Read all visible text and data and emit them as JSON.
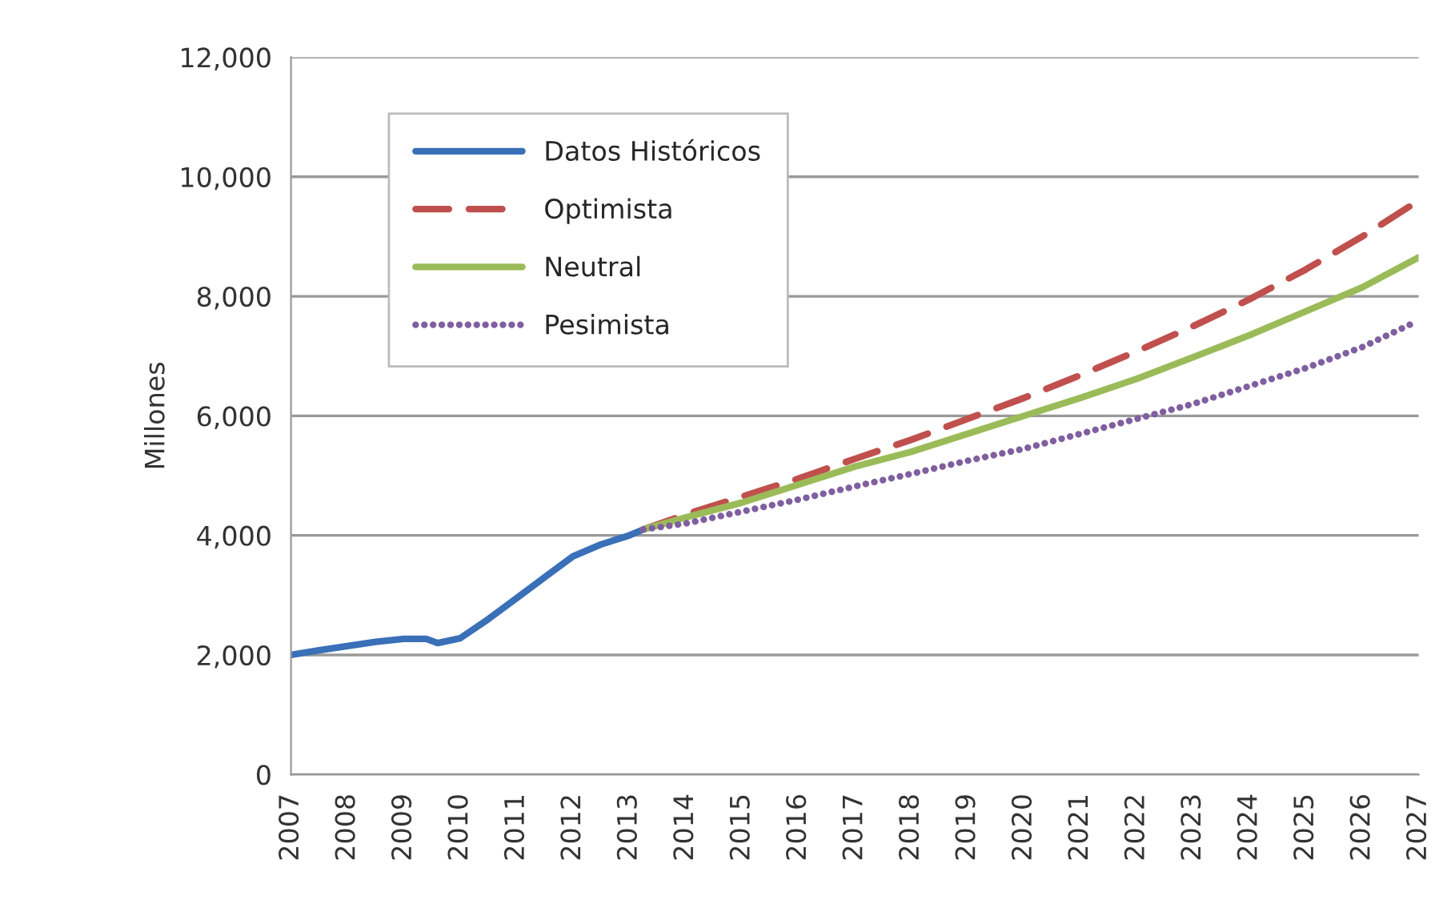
{
  "chart_data": {
    "type": "line",
    "ylabel": "Millones",
    "xlim": [
      2007,
      2027
    ],
    "xticks": [
      2007,
      2008,
      2009,
      2010,
      2011,
      2012,
      2013,
      2014,
      2015,
      2016,
      2017,
      2018,
      2019,
      2020,
      2021,
      2022,
      2023,
      2024,
      2025,
      2026,
      2027
    ],
    "ylim": [
      0,
      12000
    ],
    "yticks": [
      {
        "value": 0,
        "label": "0"
      },
      {
        "value": 2000,
        "label": "2,000"
      },
      {
        "value": 4000,
        "label": "4,000"
      },
      {
        "value": 6000,
        "label": "6,000"
      },
      {
        "value": 8000,
        "label": "8,000"
      },
      {
        "value": 10000,
        "label": "10,000"
      },
      {
        "value": 12000,
        "label": "12,000"
      }
    ],
    "grid": "y",
    "legend": "top left",
    "series": [
      {
        "name": "Datos Históricos",
        "color": "#3a70b8",
        "line_style": "solid",
        "x": [
          2007,
          2007.5,
          2008,
          2008.5,
          2009,
          2009.4,
          2009.6,
          2010,
          2010.5,
          2011,
          2011.5,
          2012,
          2012.5,
          2013,
          2013.25
        ],
        "values": [
          2000,
          2080,
          2150,
          2220,
          2270,
          2270,
          2200,
          2280,
          2600,
          2950,
          3300,
          3650,
          3850,
          4000,
          4100
        ]
      },
      {
        "name": "Optimista",
        "color": "#c0504d",
        "line_style": "dashed",
        "x": [
          2013.25,
          2014,
          2015,
          2016,
          2017,
          2018,
          2019,
          2020,
          2021,
          2022,
          2023,
          2024,
          2025,
          2026,
          2027
        ],
        "values": [
          4100,
          4350,
          4650,
          4950,
          5280,
          5600,
          5950,
          6300,
          6680,
          7080,
          7500,
          7950,
          8450,
          9000,
          9600
        ]
      },
      {
        "name": "Neutral",
        "color": "#9bbb59",
        "line_style": "solid",
        "x": [
          2013.25,
          2014,
          2015,
          2016,
          2017,
          2018,
          2019,
          2020,
          2021,
          2022,
          2023,
          2024,
          2025,
          2026,
          2027
        ],
        "values": [
          4100,
          4300,
          4550,
          4850,
          5150,
          5400,
          5700,
          6000,
          6300,
          6620,
          6980,
          7350,
          7750,
          8150,
          8650
        ]
      },
      {
        "name": "Pesimista",
        "color": "#7f5fa0",
        "line_style": "dotted",
        "x": [
          2013.25,
          2014,
          2015,
          2016,
          2017,
          2018,
          2019,
          2020,
          2021,
          2022,
          2023,
          2024,
          2025,
          2026,
          2026.9
        ],
        "values": [
          4100,
          4200,
          4400,
          4600,
          4820,
          5030,
          5250,
          5450,
          5700,
          5950,
          6200,
          6500,
          6800,
          7150,
          7550
        ]
      }
    ]
  }
}
